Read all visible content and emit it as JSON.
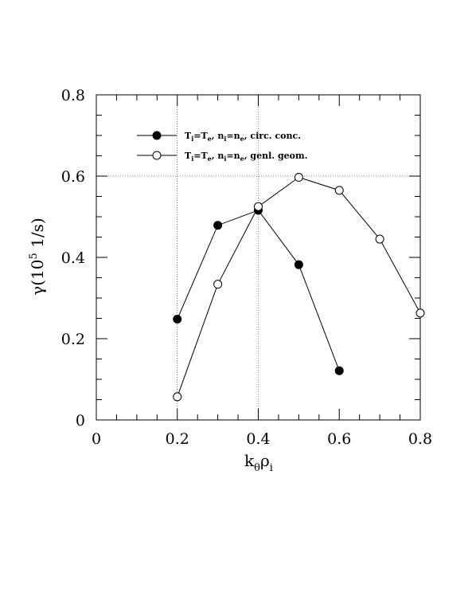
{
  "chart_data": {
    "type": "line",
    "xlabel": {
      "main": "k",
      "sub1": "θ",
      "mid": "ρ",
      "sub2": "i"
    },
    "ylabel": {
      "pre": "γ(10",
      "sup": "5",
      "post": " 1/s)"
    },
    "xlim": [
      0,
      0.8
    ],
    "ylim": [
      0,
      0.8
    ],
    "x_ticks": [
      "0",
      "0.2",
      "0.4",
      "0.6",
      "0.8"
    ],
    "y_ticks": [
      "0",
      "0.2",
      "0.4",
      "0.6",
      "0.8"
    ],
    "x_tick_values": [
      0,
      0.2,
      0.4,
      0.6,
      0.8
    ],
    "y_tick_values": [
      0,
      0.2,
      0.4,
      0.6,
      0.8
    ],
    "dotted_gridlines": {
      "x": [
        0.2,
        0.4
      ],
      "y": [
        0.6
      ]
    },
    "legend_placement": "top-left",
    "series": [
      {
        "name": "Ti=Te, ni=ne, circ. conc.",
        "marker": "filled-circle",
        "color": "#000000",
        "x": [
          0.2,
          0.3,
          0.4,
          0.5,
          0.6
        ],
        "y": [
          0.248,
          0.479,
          0.516,
          0.382,
          0.121
        ]
      },
      {
        "name": "Ti=Te, ni=ne, genl. geom.",
        "marker": "open-circle",
        "color": "#000000",
        "x": [
          0.2,
          0.3,
          0.4,
          0.5,
          0.6,
          0.7,
          0.8
        ],
        "y": [
          0.057,
          0.334,
          0.525,
          0.597,
          0.565,
          0.445,
          0.263
        ]
      }
    ]
  },
  "legend": [
    {
      "t1": "T",
      "s1": "i",
      "t2": "=T",
      "s2": "e",
      "t3": ", n",
      "s3": "i",
      "t4": "=n",
      "s4": "e",
      "t5": ", circ. conc."
    },
    {
      "t1": "T",
      "s1": "i",
      "t2": "=T",
      "s2": "e",
      "t3": ", n",
      "s3": "i",
      "t4": "=n",
      "s4": "e",
      "t5": ", genl. geom."
    }
  ]
}
